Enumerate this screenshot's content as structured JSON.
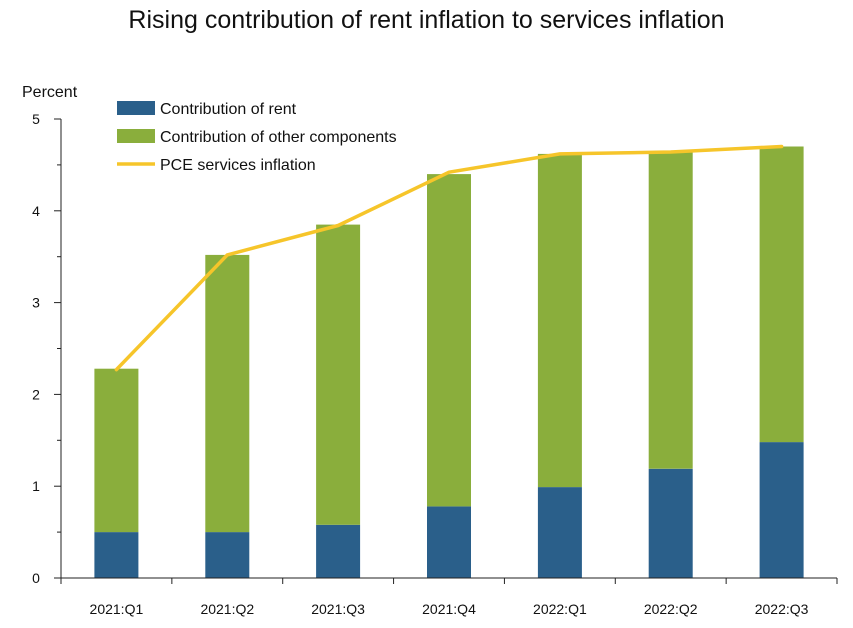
{
  "chart_data": {
    "type": "bar",
    "title": "Rising contribution of rent inflation to services inflation",
    "ylabel": "Percent",
    "xlabel": "",
    "ylim": [
      0,
      5
    ],
    "yticks": [
      "0",
      "1",
      "2",
      "3",
      "4",
      "5"
    ],
    "categories": [
      "2021:Q1",
      "2021:Q2",
      "2021:Q3",
      "2021:Q4",
      "2022:Q1",
      "2022:Q2",
      "2022:Q3"
    ],
    "stacked": true,
    "series": [
      {
        "name": "Contribution of rent",
        "type": "bar",
        "color": "#2a5f8a",
        "values": [
          0.5,
          0.5,
          0.58,
          0.78,
          0.99,
          1.19,
          1.48
        ]
      },
      {
        "name": "Contribution of other components",
        "type": "bar",
        "color": "#8aae3c",
        "values": [
          1.78,
          3.02,
          3.27,
          3.62,
          3.63,
          3.45,
          3.22
        ]
      },
      {
        "name": "PCE services inflation",
        "type": "line",
        "color": "#f6c52a",
        "values": [
          2.27,
          3.52,
          3.84,
          4.42,
          4.62,
          4.64,
          4.7
        ]
      }
    ],
    "legend": "top-left",
    "grid": false
  }
}
